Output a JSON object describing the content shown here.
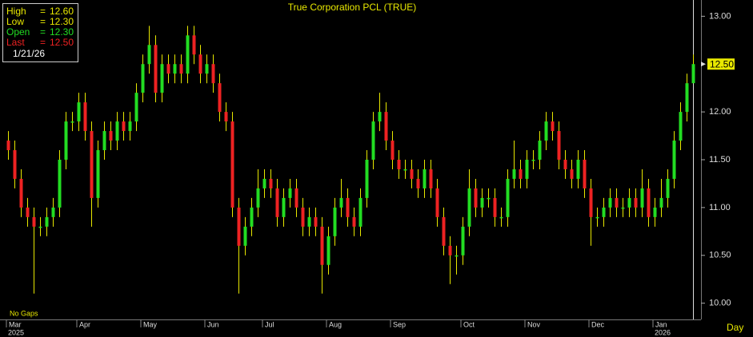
{
  "chart_data": {
    "type": "candlestick",
    "title": "True Corporation PCL (TRUE)",
    "categories": [
      "Mar",
      null,
      null,
      null,
      null,
      null,
      null,
      null,
      null,
      null,
      null,
      "Apr",
      null,
      null,
      null,
      null,
      null,
      null,
      null,
      null,
      null,
      "May",
      null,
      null,
      null,
      null,
      null,
      null,
      null,
      null,
      null,
      "Jun",
      null,
      null,
      null,
      null,
      null,
      null,
      null,
      null,
      "Jul",
      null,
      null,
      null,
      null,
      null,
      null,
      null,
      null,
      null,
      "Aug",
      null,
      null,
      null,
      null,
      null,
      null,
      null,
      null,
      null,
      "Sep",
      null,
      null,
      null,
      null,
      null,
      null,
      null,
      null,
      null,
      null,
      "Oct",
      null,
      null,
      null,
      null,
      null,
      null,
      null,
      null,
      null,
      "Nov",
      null,
      null,
      null,
      null,
      null,
      null,
      null,
      null,
      null,
      "Dec",
      null,
      null,
      null,
      null,
      null,
      null,
      null,
      null,
      null,
      "Jan",
      null,
      null,
      null,
      null,
      null,
      null
    ],
    "year_labels": [
      "2025",
      null,
      null,
      null,
      null,
      null,
      null,
      null,
      null,
      null,
      null,
      null,
      null,
      null,
      null,
      null,
      null,
      null,
      null,
      null,
      null,
      null,
      null,
      null,
      null,
      null,
      null,
      null,
      null,
      null,
      null,
      null,
      null,
      null,
      null,
      null,
      null,
      null,
      null,
      null,
      null,
      null,
      null,
      null,
      null,
      null,
      null,
      null,
      null,
      null,
      null,
      null,
      null,
      null,
      null,
      null,
      null,
      null,
      null,
      null,
      null,
      null,
      null,
      null,
      null,
      null,
      null,
      null,
      null,
      null,
      null,
      null,
      null,
      null,
      null,
      null,
      null,
      null,
      null,
      null,
      null,
      null,
      null,
      null,
      null,
      null,
      null,
      null,
      null,
      null,
      null,
      null,
      null,
      null,
      null,
      null,
      null,
      null,
      null,
      null,
      null,
      "2026",
      null,
      null,
      null,
      null,
      null,
      null
    ],
    "open": [
      11.7,
      11.6,
      11.3,
      11.0,
      10.9,
      10.8,
      10.8,
      10.9,
      11.0,
      11.5,
      11.9,
      11.9,
      12.1,
      11.8,
      11.1,
      11.6,
      11.8,
      11.7,
      11.9,
      11.8,
      11.9,
      12.2,
      12.5,
      12.7,
      12.2,
      12.5,
      12.4,
      12.5,
      12.4,
      12.8,
      12.6,
      12.4,
      12.5,
      12.3,
      12.0,
      11.9,
      11.0,
      10.6,
      10.8,
      11.0,
      11.2,
      11.3,
      11.2,
      10.9,
      11.1,
      11.2,
      11.0,
      10.8,
      10.9,
      10.8,
      10.4,
      10.7,
      11.0,
      11.1,
      10.9,
      10.8,
      11.1,
      11.5,
      11.9,
      12.0,
      11.7,
      11.5,
      11.4,
      11.4,
      11.3,
      11.2,
      11.4,
      11.2,
      10.9,
      10.6,
      10.5,
      10.5,
      10.8,
      11.2,
      11.0,
      11.1,
      11.1,
      10.9,
      10.9,
      11.3,
      11.4,
      11.3,
      11.5,
      11.5,
      11.7,
      11.9,
      11.8,
      11.5,
      11.4,
      11.3,
      11.5,
      11.2,
      10.9,
      10.9,
      11.0,
      11.1,
      11.0,
      11.0,
      11.1,
      11.0,
      11.2,
      10.9,
      11.0,
      11.1,
      11.3,
      11.7,
      12.0,
      12.3
    ],
    "high": [
      11.8,
      11.7,
      11.4,
      11.1,
      11.0,
      10.9,
      11.0,
      11.1,
      11.6,
      12.0,
      12.0,
      12.2,
      12.2,
      11.9,
      11.7,
      11.9,
      11.9,
      12.0,
      12.0,
      12.0,
      12.3,
      12.6,
      12.9,
      12.8,
      12.6,
      12.6,
      12.6,
      12.6,
      12.9,
      12.9,
      12.7,
      12.6,
      12.6,
      12.4,
      12.1,
      12.0,
      11.1,
      10.9,
      11.1,
      11.4,
      11.4,
      11.4,
      11.3,
      11.2,
      11.3,
      11.3,
      11.1,
      11.0,
      11.0,
      10.9,
      10.8,
      11.1,
      11.3,
      11.2,
      11.0,
      11.2,
      11.6,
      12.0,
      12.2,
      12.1,
      11.8,
      11.6,
      11.5,
      11.5,
      11.4,
      11.5,
      11.5,
      11.3,
      11.0,
      10.7,
      10.6,
      10.9,
      11.4,
      11.3,
      11.2,
      11.2,
      11.2,
      11.0,
      11.4,
      11.7,
      11.5,
      11.6,
      11.6,
      11.8,
      12.0,
      12.0,
      11.9,
      11.6,
      11.5,
      11.6,
      11.6,
      11.3,
      11.0,
      11.1,
      11.2,
      11.2,
      11.1,
      11.2,
      11.2,
      11.4,
      11.3,
      11.1,
      11.3,
      11.4,
      11.8,
      12.1,
      12.4,
      12.6
    ],
    "low": [
      11.5,
      11.2,
      10.9,
      10.8,
      10.1,
      10.7,
      10.7,
      10.8,
      10.9,
      11.4,
      11.8,
      11.8,
      11.7,
      10.8,
      11.0,
      11.5,
      11.6,
      11.6,
      11.7,
      11.7,
      11.8,
      12.1,
      12.4,
      12.1,
      12.1,
      12.3,
      12.3,
      12.3,
      12.3,
      12.5,
      12.3,
      12.3,
      12.2,
      11.9,
      11.8,
      10.9,
      10.1,
      10.5,
      10.7,
      10.9,
      11.1,
      11.1,
      10.8,
      10.8,
      11.0,
      10.9,
      10.7,
      10.7,
      10.7,
      10.1,
      10.3,
      10.6,
      10.9,
      10.8,
      10.7,
      10.7,
      11.0,
      11.4,
      11.8,
      11.6,
      11.4,
      11.3,
      11.3,
      11.2,
      11.1,
      11.1,
      11.1,
      10.8,
      10.5,
      10.2,
      10.3,
      10.4,
      10.7,
      10.9,
      10.9,
      11.0,
      10.8,
      10.8,
      10.8,
      11.2,
      11.2,
      11.2,
      11.4,
      11.4,
      11.6,
      11.7,
      11.4,
      11.3,
      11.2,
      11.2,
      11.1,
      10.6,
      10.8,
      10.8,
      10.9,
      10.9,
      10.9,
      10.9,
      10.9,
      10.9,
      10.8,
      10.8,
      10.9,
      11.0,
      11.2,
      11.6,
      11.9,
      12.3
    ],
    "close": [
      11.6,
      11.3,
      11.0,
      10.9,
      10.8,
      10.8,
      10.9,
      11.0,
      11.5,
      11.9,
      11.9,
      12.1,
      11.8,
      11.1,
      11.6,
      11.8,
      11.7,
      11.9,
      11.8,
      11.9,
      12.2,
      12.5,
      12.7,
      12.2,
      12.5,
      12.4,
      12.5,
      12.4,
      12.8,
      12.6,
      12.4,
      12.5,
      12.3,
      12.0,
      11.9,
      11.0,
      10.6,
      10.8,
      11.0,
      11.2,
      11.3,
      11.2,
      10.9,
      11.1,
      11.2,
      11.0,
      10.8,
      10.9,
      10.8,
      10.4,
      10.7,
      11.0,
      11.1,
      10.9,
      10.8,
      11.1,
      11.5,
      11.9,
      12.0,
      11.7,
      11.5,
      11.4,
      11.4,
      11.3,
      11.2,
      11.4,
      11.2,
      10.9,
      10.6,
      10.5,
      10.5,
      10.8,
      11.2,
      11.0,
      11.1,
      11.1,
      10.9,
      10.9,
      11.3,
      11.4,
      11.3,
      11.5,
      11.5,
      11.7,
      11.9,
      11.8,
      11.5,
      11.4,
      11.3,
      11.5,
      11.2,
      10.9,
      10.9,
      11.0,
      11.1,
      11.0,
      11.0,
      11.1,
      11.0,
      11.2,
      10.9,
      11.0,
      11.1,
      11.3,
      11.7,
      12.0,
      12.3,
      12.5
    ],
    "up_color": "#22dd22",
    "down_color": "#ee2222",
    "wick_color": "#e8e800",
    "ylim": [
      9.83,
      13.17
    ],
    "yticks": [
      {
        "value": 10,
        "label": "10.00"
      },
      {
        "value": 10.5,
        "label": "10.50"
      },
      {
        "value": 11,
        "label": "11.00"
      },
      {
        "value": 11.5,
        "label": "11.50"
      },
      {
        "value": 12,
        "label": "12.00"
      },
      {
        "value": 12.5,
        "label": "12.50"
      },
      {
        "value": 13,
        "label": "13.00"
      }
    ],
    "last_price": {
      "value": 12.5,
      "label": "12.50"
    },
    "info": {
      "rows": [
        {
          "name": "High",
          "sign": "=",
          "value": 12.6,
          "label": "12.60",
          "color": "#e8e800"
        },
        {
          "name": "Low",
          "sign": "=",
          "value": 12.3,
          "label": "12.30",
          "color": "#e8e800"
        },
        {
          "name": "Open",
          "sign": "=",
          "value": 12.3,
          "label": "12.30",
          "color": "#22dd22"
        },
        {
          "name": "Last",
          "sign": "=",
          "value": 12.5,
          "label": "12.50",
          "color": "#ee2222"
        }
      ],
      "date": "1/21/26"
    },
    "gaps_note": "No Gaps",
    "period": "Day"
  }
}
